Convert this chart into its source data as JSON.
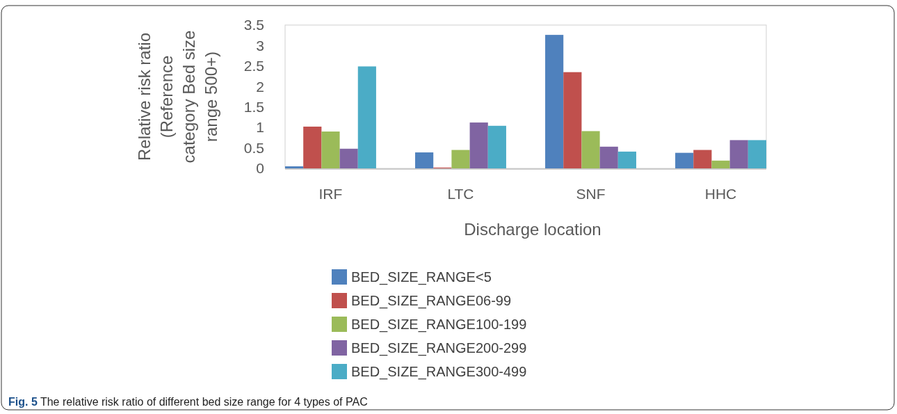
{
  "chart_data": {
    "type": "bar",
    "title": "Fig. 5 The relative risk ratio of different bed size range for 4 types of PAC",
    "xlabel": "Discharge location",
    "ylabel": "Relative risk ratio\n(Reference\ncategory Bed size\nrange 500+)",
    "categories": [
      "IRF",
      "LTC",
      "SNF",
      "HHC"
    ],
    "series": [
      {
        "name": "BED_SIZE_RANGE<5",
        "color": "#4f81bd",
        "values": [
          0.05,
          0.39,
          3.26,
          0.38
        ]
      },
      {
        "name": "BED_SIZE_RANGE06-99",
        "color": "#c0504d",
        "values": [
          1.02,
          0.02,
          2.35,
          0.45
        ]
      },
      {
        "name": "BED_SIZE_RANGE100-199",
        "color": "#9bbb59",
        "values": [
          0.9,
          0.45,
          0.91,
          0.19
        ]
      },
      {
        "name": "BED_SIZE_RANGE200-299",
        "color": "#8064a2",
        "values": [
          0.48,
          1.12,
          0.53,
          0.69
        ]
      },
      {
        "name": "BED_SIZE_RANGE300-499",
        "color": "#4bacc6",
        "values": [
          2.49,
          1.04,
          0.41,
          0.69
        ]
      }
    ],
    "ylim": [
      0,
      3.5
    ],
    "yticks": [
      0,
      0.5,
      1,
      1.5,
      2,
      2.5,
      3,
      3.5
    ],
    "grid": false,
    "legend": "bottom"
  }
}
